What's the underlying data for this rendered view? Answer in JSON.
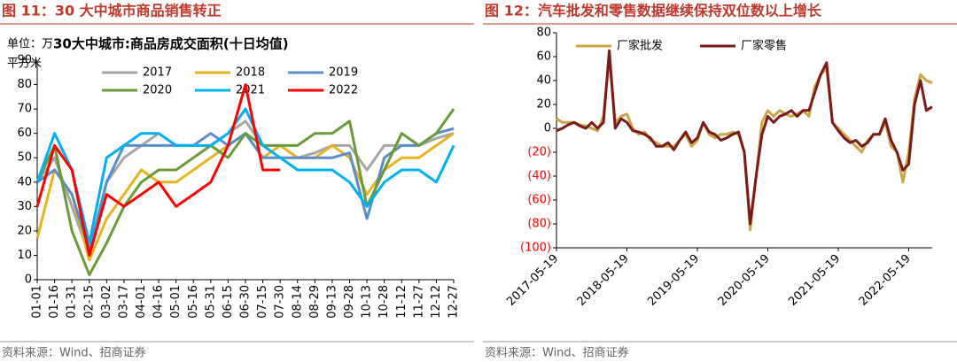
{
  "chart_data": [
    {
      "type": "line",
      "figure_title": "图 11：30 大中城市商品销售转正",
      "title": "30大中城市:商品房成交面积(十日均值)",
      "unit_lines": [
        "单位：万",
        "平方米"
      ],
      "source": "资料来源：Wind、招商证券",
      "categories": [
        "01-01",
        "01-16",
        "01-31",
        "02-15",
        "03-02",
        "03-17",
        "04-01",
        "04-16",
        "05-01",
        "05-16",
        "05-31",
        "06-15",
        "06-30",
        "07-15",
        "07-30",
        "08-14",
        "08-29",
        "09-13",
        "09-28",
        "10-13",
        "10-28",
        "11-12",
        "11-27",
        "12-12",
        "12-27"
      ],
      "ylim": [
        0,
        90
      ],
      "yticks": [
        0,
        10,
        20,
        30,
        40,
        50,
        60,
        70,
        80,
        90
      ],
      "series": [
        {
          "name": "2017",
          "color": "#a6a6a6",
          "values": [
            40,
            50,
            30,
            10,
            40,
            50,
            55,
            60,
            55,
            55,
            55,
            60,
            65,
            55,
            55,
            50,
            52,
            55,
            55,
            45,
            55,
            55,
            55,
            58,
            60
          ]
        },
        {
          "name": "2018",
          "color": "#e6b422",
          "values": [
            17,
            45,
            35,
            8,
            25,
            35,
            45,
            40,
            40,
            45,
            50,
            55,
            60,
            50,
            55,
            50,
            50,
            55,
            50,
            35,
            45,
            50,
            50,
            55,
            60
          ]
        },
        {
          "name": "2019",
          "color": "#5b8ec9",
          "values": [
            40,
            45,
            35,
            12,
            40,
            55,
            55,
            55,
            55,
            55,
            60,
            55,
            60,
            50,
            50,
            50,
            50,
            50,
            52,
            25,
            50,
            55,
            55,
            60,
            62
          ]
        },
        {
          "name": "2020",
          "color": "#6a9a3a",
          "values": [
            40,
            55,
            20,
            2,
            15,
            30,
            40,
            45,
            45,
            50,
            55,
            50,
            60,
            55,
            55,
            55,
            60,
            60,
            65,
            30,
            45,
            60,
            55,
            60,
            70
          ]
        },
        {
          "name": "2021",
          "color": "#00b0f0",
          "values": [
            40,
            60,
            45,
            15,
            50,
            55,
            60,
            60,
            55,
            55,
            55,
            60,
            70,
            55,
            50,
            45,
            45,
            45,
            40,
            30,
            40,
            45,
            45,
            40,
            55
          ]
        },
        {
          "name": "2022",
          "color": "#ff0000",
          "values": [
            30,
            55,
            45,
            10,
            35,
            30,
            35,
            40,
            30,
            35,
            40,
            55,
            80,
            45,
            45,
            null,
            null,
            null,
            null,
            null,
            null,
            null,
            null,
            null,
            null
          ]
        }
      ]
    },
    {
      "type": "line",
      "figure_title": "图 12：汽车批发和零售数据继续保持双位数以上增长",
      "source": "资料来源：Wind、招商证券",
      "categories": [
        "2017-05-19",
        null,
        null,
        null,
        null,
        null,
        null,
        null,
        null,
        null,
        null,
        null,
        "2018-05-19",
        null,
        null,
        null,
        null,
        null,
        null,
        null,
        null,
        null,
        null,
        null,
        "2019-05-19",
        null,
        null,
        null,
        null,
        null,
        null,
        null,
        null,
        null,
        null,
        null,
        "2020-05-19",
        null,
        null,
        null,
        null,
        null,
        null,
        null,
        null,
        null,
        null,
        null,
        "2021-05-19",
        null,
        null,
        null,
        null,
        null,
        null,
        null,
        null,
        null,
        null,
        null,
        "2022-05-19",
        null,
        null,
        null,
        null
      ],
      "ylim": [
        -100,
        80
      ],
      "yticks": [
        {
          "value": -100,
          "label": "(100)"
        },
        {
          "value": -80,
          "label": "(80)"
        },
        {
          "value": -60,
          "label": "(60)"
        },
        {
          "value": -40,
          "label": "(40)"
        },
        {
          "value": -20,
          "label": "(20)"
        },
        0,
        20,
        40,
        60,
        80
      ],
      "negative_tick_color": "#ff0000",
      "series": [
        {
          "name": "厂家批发",
          "color": "#c9a646",
          "values": [
            8,
            5,
            5,
            5,
            3,
            2,
            0,
            -2,
            10,
            60,
            5,
            10,
            12,
            0,
            -5,
            -3,
            -10,
            -12,
            -15,
            -15,
            -15,
            -10,
            -5,
            -15,
            -10,
            5,
            -5,
            -8,
            -5,
            -5,
            -3,
            -5,
            -20,
            -85,
            -40,
            5,
            15,
            10,
            15,
            12,
            10,
            12,
            15,
            10,
            35,
            45,
            50,
            5,
            0,
            -5,
            -10,
            -15,
            -20,
            -10,
            -5,
            -5,
            5,
            -15,
            -20,
            -45,
            -20,
            25,
            45,
            40,
            38
          ]
        },
        {
          "name": "厂家零售",
          "color": "#7b1a1a",
          "values": [
            -2,
            0,
            3,
            5,
            2,
            0,
            5,
            0,
            5,
            65,
            0,
            8,
            5,
            -2,
            -3,
            -5,
            -8,
            -15,
            -15,
            -12,
            -18,
            -10,
            -3,
            -12,
            -8,
            5,
            -3,
            -5,
            -10,
            -8,
            -5,
            -3,
            -20,
            -80,
            -40,
            -5,
            10,
            5,
            10,
            12,
            15,
            10,
            15,
            15,
            30,
            45,
            55,
            5,
            -2,
            -8,
            -12,
            -10,
            -15,
            -12,
            -5,
            -5,
            8,
            -10,
            -20,
            -35,
            -30,
            20,
            40,
            15,
            18
          ]
        }
      ]
    }
  ]
}
